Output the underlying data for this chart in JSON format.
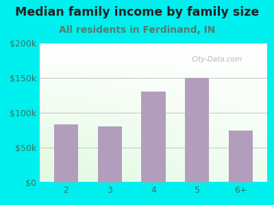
{
  "title": "Median family income by family size",
  "subtitle": "All residents in Ferdinand, IN",
  "categories": [
    "2",
    "3",
    "4",
    "5",
    "6+"
  ],
  "values": [
    83000,
    80000,
    130000,
    150000,
    75000
  ],
  "bar_color": "#b39dbd",
  "background_outer": "#00efef",
  "title_color": "#222222",
  "subtitle_color": "#5a7a6a",
  "tick_color": "#4a6a5a",
  "grid_color": "#c0c8c0",
  "ylim": [
    0,
    200000
  ],
  "yticks": [
    0,
    50000,
    100000,
    150000,
    200000
  ],
  "ytick_labels": [
    "$0",
    "$50k",
    "$100k",
    "$150k",
    "$200k"
  ],
  "title_fontsize": 12.5,
  "subtitle_fontsize": 10,
  "watermark": "City-Data.com"
}
